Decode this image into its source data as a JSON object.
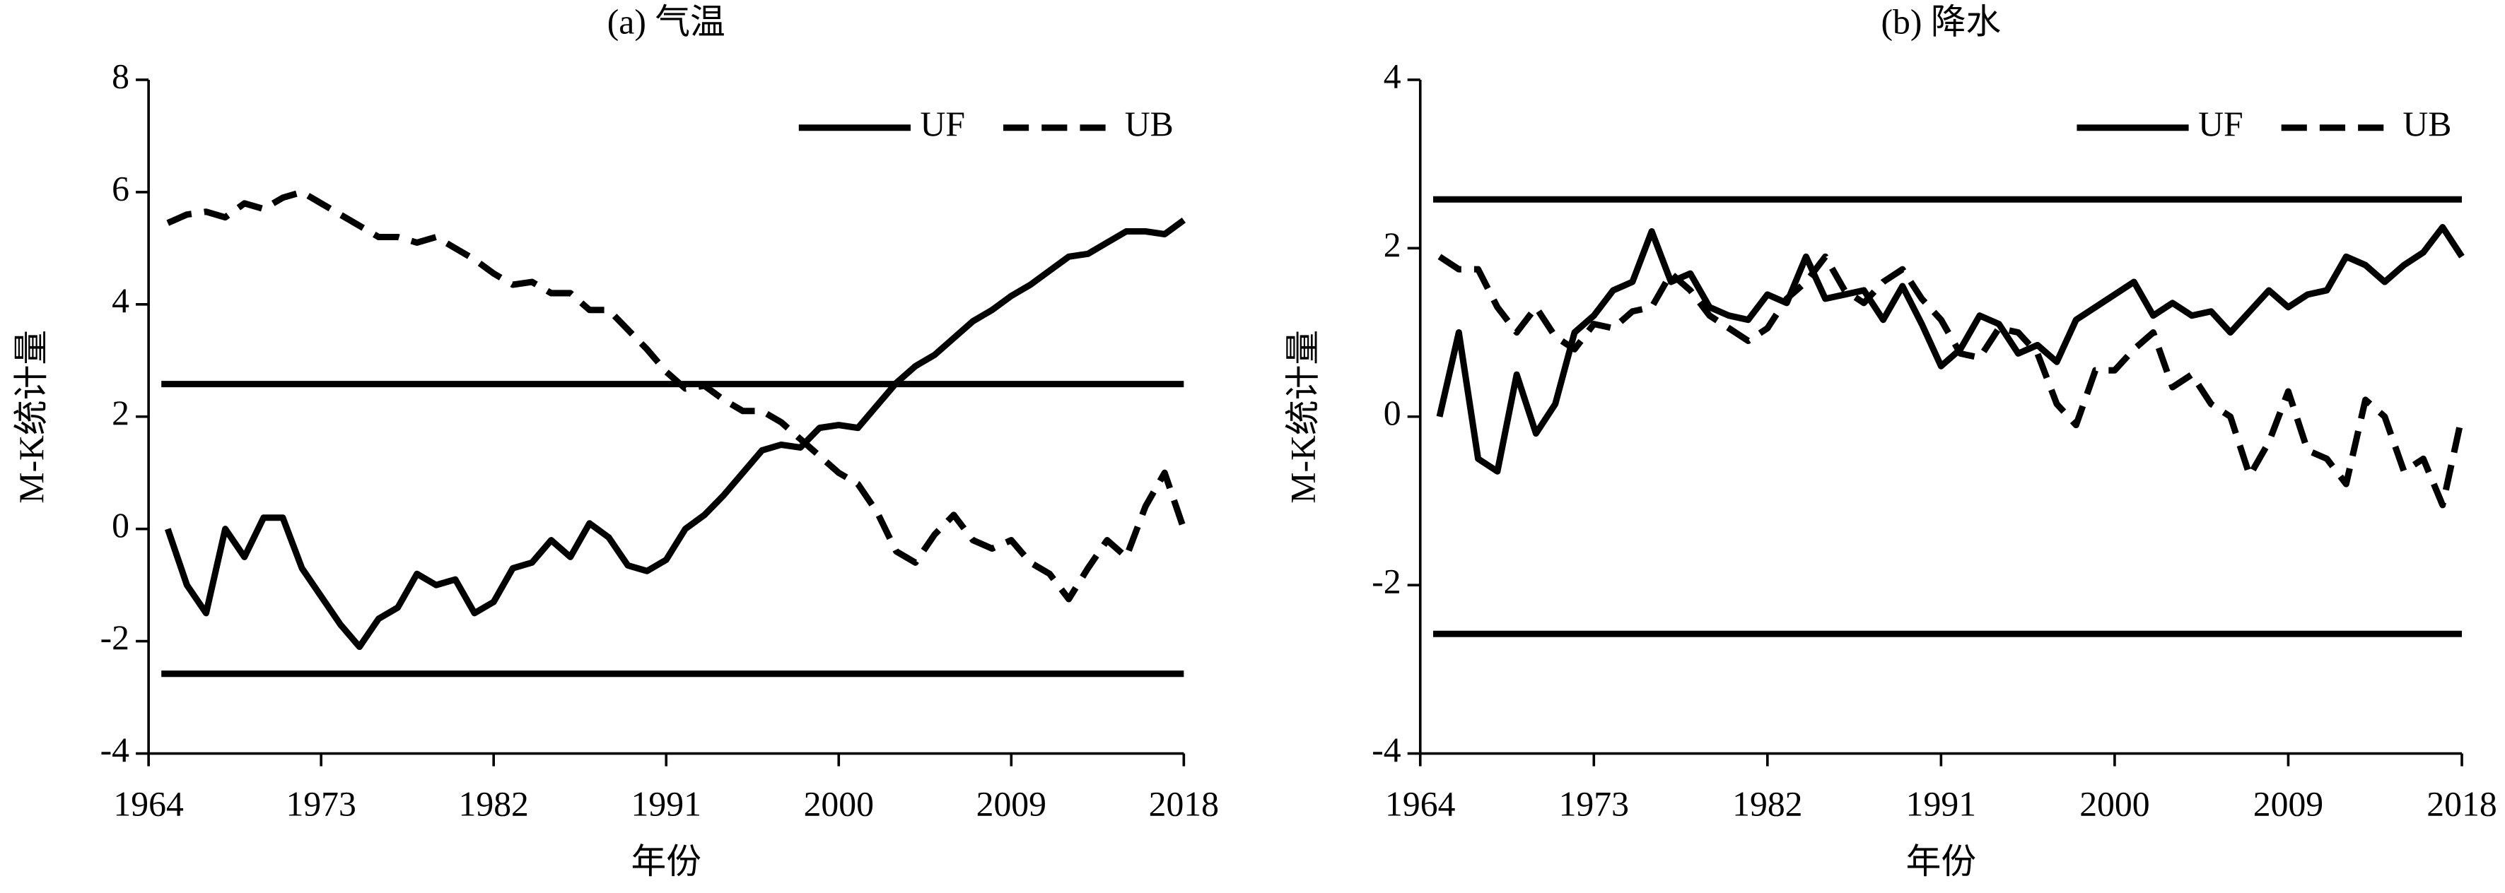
{
  "chart_data": [
    {
      "type": "line",
      "title": "(a) 气温",
      "xlabel": "年份",
      "ylabel": "M-K统计量",
      "x": [
        1965,
        1966,
        1967,
        1968,
        1969,
        1970,
        1971,
        1972,
        1973,
        1974,
        1975,
        1976,
        1977,
        1978,
        1979,
        1980,
        1981,
        1982,
        1983,
        1984,
        1985,
        1986,
        1987,
        1988,
        1989,
        1990,
        1991,
        1992,
        1993,
        1994,
        1995,
        1996,
        1997,
        1998,
        1999,
        2000,
        2001,
        2002,
        2003,
        2004,
        2005,
        2006,
        2007,
        2008,
        2009,
        2010,
        2011,
        2012,
        2013,
        2014,
        2015,
        2016,
        2017,
        2018
      ],
      "xlim": [
        1964,
        2018
      ],
      "xticks": [
        1964,
        1973,
        1982,
        1991,
        2000,
        2009,
        2018
      ],
      "ylim": [
        -4,
        8
      ],
      "yticks": [
        -4,
        -2,
        0,
        2,
        4,
        6,
        8
      ],
      "hlines": [
        2.58,
        -2.58
      ],
      "legend": "upper right",
      "series": [
        {
          "name": "UF",
          "color": "#000000",
          "linestyle": "solid",
          "values": [
            0,
            -1.0,
            -1.5,
            0.0,
            -0.5,
            0.2,
            0.2,
            -0.7,
            -1.2,
            -1.7,
            -2.1,
            -1.6,
            -1.4,
            -0.8,
            -1.0,
            -0.9,
            -1.5,
            -1.3,
            -0.7,
            -0.6,
            -0.2,
            -0.5,
            0.1,
            -0.15,
            -0.65,
            -0.75,
            -0.55,
            0.0,
            0.25,
            0.6,
            1.0,
            1.4,
            1.5,
            1.45,
            1.8,
            1.85,
            1.8,
            2.2,
            2.6,
            2.9,
            3.1,
            3.4,
            3.7,
            3.9,
            4.15,
            4.35,
            4.6,
            4.85,
            4.9,
            5.1,
            5.3,
            5.3,
            5.25,
            5.5
          ]
        },
        {
          "name": "UB",
          "color": "#000000",
          "linestyle": "dashed",
          "values": [
            5.45,
            5.6,
            5.65,
            5.55,
            5.8,
            5.7,
            5.9,
            6.0,
            5.8,
            5.6,
            5.4,
            5.2,
            5.2,
            5.1,
            5.2,
            5.0,
            4.8,
            4.55,
            4.35,
            4.4,
            4.2,
            4.2,
            3.9,
            3.9,
            3.55,
            3.2,
            2.8,
            2.5,
            2.55,
            2.3,
            2.1,
            2.1,
            1.9,
            1.6,
            1.3,
            1.0,
            0.8,
            0.3,
            -0.4,
            -0.6,
            -0.1,
            0.25,
            -0.2,
            -0.35,
            -0.2,
            -0.6,
            -0.8,
            -1.25,
            -0.7,
            -0.2,
            -0.5,
            0.4,
            1.0,
            0.0
          ]
        }
      ]
    },
    {
      "type": "line",
      "title": "(b) 降水",
      "xlabel": "年份",
      "ylabel": "M-K统计量",
      "x": [
        1965,
        1966,
        1967,
        1968,
        1969,
        1970,
        1971,
        1972,
        1973,
        1974,
        1975,
        1976,
        1977,
        1978,
        1979,
        1980,
        1981,
        1982,
        1983,
        1984,
        1985,
        1986,
        1987,
        1988,
        1989,
        1990,
        1991,
        1992,
        1993,
        1994,
        1995,
        1996,
        1997,
        1998,
        1999,
        2000,
        2001,
        2002,
        2003,
        2004,
        2005,
        2006,
        2007,
        2008,
        2009,
        2010,
        2011,
        2012,
        2013,
        2014,
        2015,
        2016,
        2017,
        2018
      ],
      "xlim": [
        1964,
        2018
      ],
      "xticks": [
        1964,
        1973,
        1982,
        1991,
        2000,
        2009,
        2018
      ],
      "ylim": [
        -4,
        4
      ],
      "yticks": [
        -4,
        -2,
        0,
        2,
        4
      ],
      "hlines": [
        2.58,
        -2.58
      ],
      "legend": "upper right",
      "series": [
        {
          "name": "UF",
          "color": "#000000",
          "linestyle": "solid",
          "values": [
            0.0,
            1.0,
            -0.5,
            -0.65,
            0.5,
            -0.2,
            0.15,
            1.0,
            1.2,
            1.5,
            1.6,
            2.2,
            1.6,
            1.7,
            1.3,
            1.2,
            1.15,
            1.45,
            1.35,
            1.9,
            1.4,
            1.45,
            1.5,
            1.15,
            1.55,
            1.1,
            0.6,
            0.8,
            1.2,
            1.1,
            0.75,
            0.85,
            0.65,
            1.15,
            1.3,
            1.45,
            1.6,
            1.2,
            1.35,
            1.2,
            1.25,
            1.0,
            1.25,
            1.5,
            1.3,
            1.45,
            1.5,
            1.9,
            1.8,
            1.6,
            1.8,
            1.95,
            2.25,
            1.9
          ]
        },
        {
          "name": "UB",
          "color": "#000000",
          "linestyle": "dashed",
          "values": [
            1.9,
            1.75,
            1.75,
            1.3,
            1.0,
            1.3,
            0.95,
            0.8,
            1.1,
            1.05,
            1.25,
            1.3,
            1.7,
            1.5,
            1.2,
            1.05,
            0.9,
            1.05,
            1.4,
            1.6,
            1.9,
            1.5,
            1.35,
            1.6,
            1.75,
            1.4,
            1.15,
            0.75,
            0.7,
            1.05,
            1.0,
            0.75,
            0.15,
            -0.1,
            0.55,
            0.55,
            0.8,
            1.0,
            0.35,
            0.5,
            0.15,
            0.0,
            -0.7,
            -0.3,
            0.3,
            -0.4,
            -0.5,
            -0.8,
            0.2,
            0.0,
            -0.65,
            -0.5,
            -1.05,
            0.0
          ]
        }
      ]
    }
  ]
}
